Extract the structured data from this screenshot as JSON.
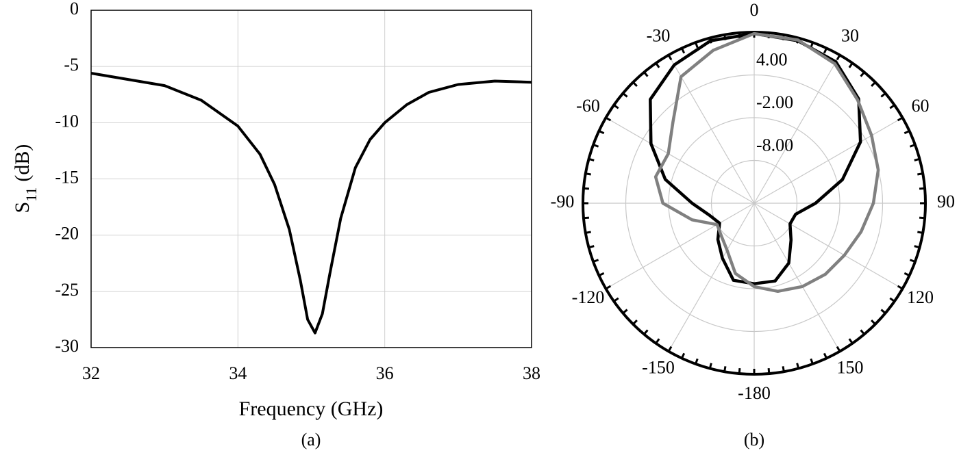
{
  "chart_data": [
    {
      "type": "line",
      "x": [
        32,
        33,
        33.5,
        34,
        34.3,
        34.5,
        34.7,
        34.85,
        34.95,
        35.05,
        35.15,
        35.25,
        35.4,
        35.6,
        35.8,
        36,
        36.3,
        36.6,
        37,
        37.5,
        38
      ],
      "values": [
        -5.6,
        -6.7,
        -8,
        -10.3,
        -12.8,
        -15.5,
        -19.5,
        -24,
        -27.5,
        -28.7,
        -27,
        -23.5,
        -18.5,
        -14,
        -11.5,
        -10,
        -8.4,
        -7.3,
        -6.6,
        -6.3,
        -6.4
      ],
      "color": "#000000",
      "xlim": [
        32,
        38
      ],
      "xticks": [
        32,
        34,
        36,
        38
      ],
      "ylim": [
        -30,
        0
      ],
      "yticks": [
        0,
        -5,
        -10,
        -15,
        -20,
        -25,
        -30
      ],
      "grid": true,
      "xlabel": "Frequency (GHz)",
      "ylabel": {
        "text": "S",
        "subscript": "11",
        "suffix": "(dB)"
      },
      "caption": "(a)"
    },
    {
      "type": "polar",
      "theta": [
        0,
        15,
        30,
        45,
        60,
        75,
        90,
        105,
        120,
        135,
        150,
        165,
        180,
        -165,
        -150,
        -135,
        -120,
        -105,
        -90,
        -75,
        -60,
        -45,
        -30,
        -15
      ],
      "series": [
        {
          "color": "#000000",
          "values": [
            9.8,
            9.6,
            8.9,
            6.7,
            3.2,
            -1.2,
            -5.4,
            -8,
            -8.2,
            -6.7,
            -4.3,
            -2.7,
            -2.7,
            -2.8,
            -5.1,
            -6.8,
            -8.4,
            -7.5,
            -5.3,
            -1.1,
            2.7,
            6.6,
            8.4,
            9.6
          ]
        },
        {
          "color": "#808080",
          "values": [
            9.8,
            9.7,
            8.6,
            6.5,
            5,
            4,
            2.7,
            1.5,
            0.6,
            0.1,
            -0.5,
            -1.2,
            -2.3,
            -3.8,
            -6.4,
            -7.5,
            -8,
            -5,
            -1.2,
            0.3,
            -0.1,
            2.1,
            6.5,
            8.2
          ]
        }
      ],
      "rlim": [
        -14,
        10
      ],
      "rticks": [
        {
          "value": 4,
          "label": "4.00"
        },
        {
          "value": -2,
          "label": "-2.00"
        },
        {
          "value": -8,
          "label": "-8.00"
        }
      ],
      "thetaticks": [
        0,
        30,
        60,
        90,
        120,
        150,
        -180,
        -150,
        -120,
        -90,
        -60,
        -30
      ],
      "grid": true,
      "caption": "(b)"
    }
  ]
}
